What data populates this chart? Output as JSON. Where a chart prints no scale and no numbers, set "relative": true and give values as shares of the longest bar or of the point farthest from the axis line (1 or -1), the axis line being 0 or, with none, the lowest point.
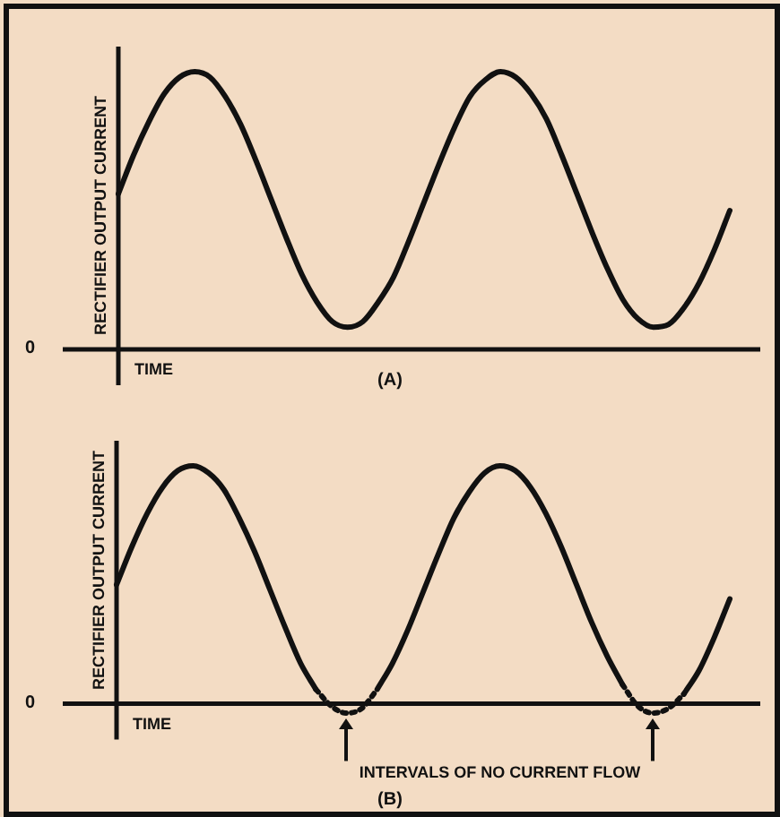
{
  "chart_data": [
    {
      "type": "line",
      "title": "(A)",
      "xlabel": "TIME",
      "ylabel": "RECTIFIER OUTPUT CURRENT",
      "relative": true,
      "marker": "none",
      "line_style": "solid",
      "categories": [
        null,
        null,
        null,
        null,
        null,
        null,
        null,
        null,
        null,
        null,
        null,
        null,
        null,
        null,
        null,
        null,
        null,
        null,
        null,
        null,
        null,
        null,
        null,
        null,
        null,
        null,
        null,
        null,
        null,
        null,
        null,
        null,
        null,
        null,
        null,
        null,
        null,
        null,
        null,
        null,
        null
      ],
      "series": [
        {
          "color": "#111111",
          "values": [
            0.56,
            0.7,
            0.82,
            0.92,
            0.98,
            1.0,
            0.98,
            0.91,
            0.81,
            0.68,
            0.54,
            0.4,
            0.27,
            0.17,
            0.1,
            0.08,
            0.1,
            0.17,
            0.26,
            0.39,
            0.53,
            0.67,
            0.8,
            0.91,
            0.97,
            1.0,
            0.98,
            0.92,
            0.83,
            0.7,
            0.56,
            0.42,
            0.29,
            0.18,
            0.11,
            0.08,
            0.09,
            0.15,
            0.24,
            0.36,
            0.5
          ]
        }
      ],
      "annotations": [
        "0"
      ]
    },
    {
      "type": "line",
      "title": "(B)",
      "xlabel": "TIME",
      "ylabel": "RECTIFIER OUTPUT CURRENT",
      "relative": true,
      "marker": "none",
      "categories": [
        null,
        null,
        null,
        null,
        null,
        null,
        null,
        null,
        null,
        null,
        null,
        null,
        null,
        null,
        null,
        null,
        null,
        null,
        null,
        null,
        null,
        null,
        null,
        null,
        null,
        null,
        null,
        null,
        null,
        null,
        null,
        null,
        null,
        null,
        null,
        null,
        null,
        null,
        null,
        null,
        null
      ],
      "series": [
        {
          "color": "#111111",
          "line_style": "solid",
          "values": [
            0.5,
            0.66,
            0.8,
            0.91,
            0.98,
            1.0,
            0.97,
            0.9,
            0.78,
            0.64,
            0.48,
            0.32,
            0.17,
            0.06,
            null,
            null,
            null,
            0.06,
            0.17,
            0.31,
            0.47,
            0.63,
            0.78,
            0.89,
            0.97,
            1.0,
            0.98,
            0.91,
            0.8,
            0.66,
            0.5,
            0.34,
            0.2,
            0.08,
            null,
            null,
            null,
            0.04,
            0.14,
            0.28,
            0.44
          ]
        },
        {
          "color": "#111111",
          "line_style": "dotted",
          "values": [
            null,
            null,
            null,
            null,
            null,
            null,
            null,
            null,
            null,
            null,
            null,
            null,
            null,
            0.06,
            -0.01,
            -0.04,
            -0.02,
            0.06,
            null,
            null,
            null,
            null,
            null,
            null,
            null,
            null,
            null,
            null,
            null,
            null,
            null,
            null,
            null,
            0.08,
            -0.01,
            -0.04,
            -0.02,
            0.04,
            null,
            null,
            null
          ]
        }
      ],
      "annotations": [
        "0",
        "INTERVALS OF NO CURRENT FLOW"
      ]
    }
  ]
}
